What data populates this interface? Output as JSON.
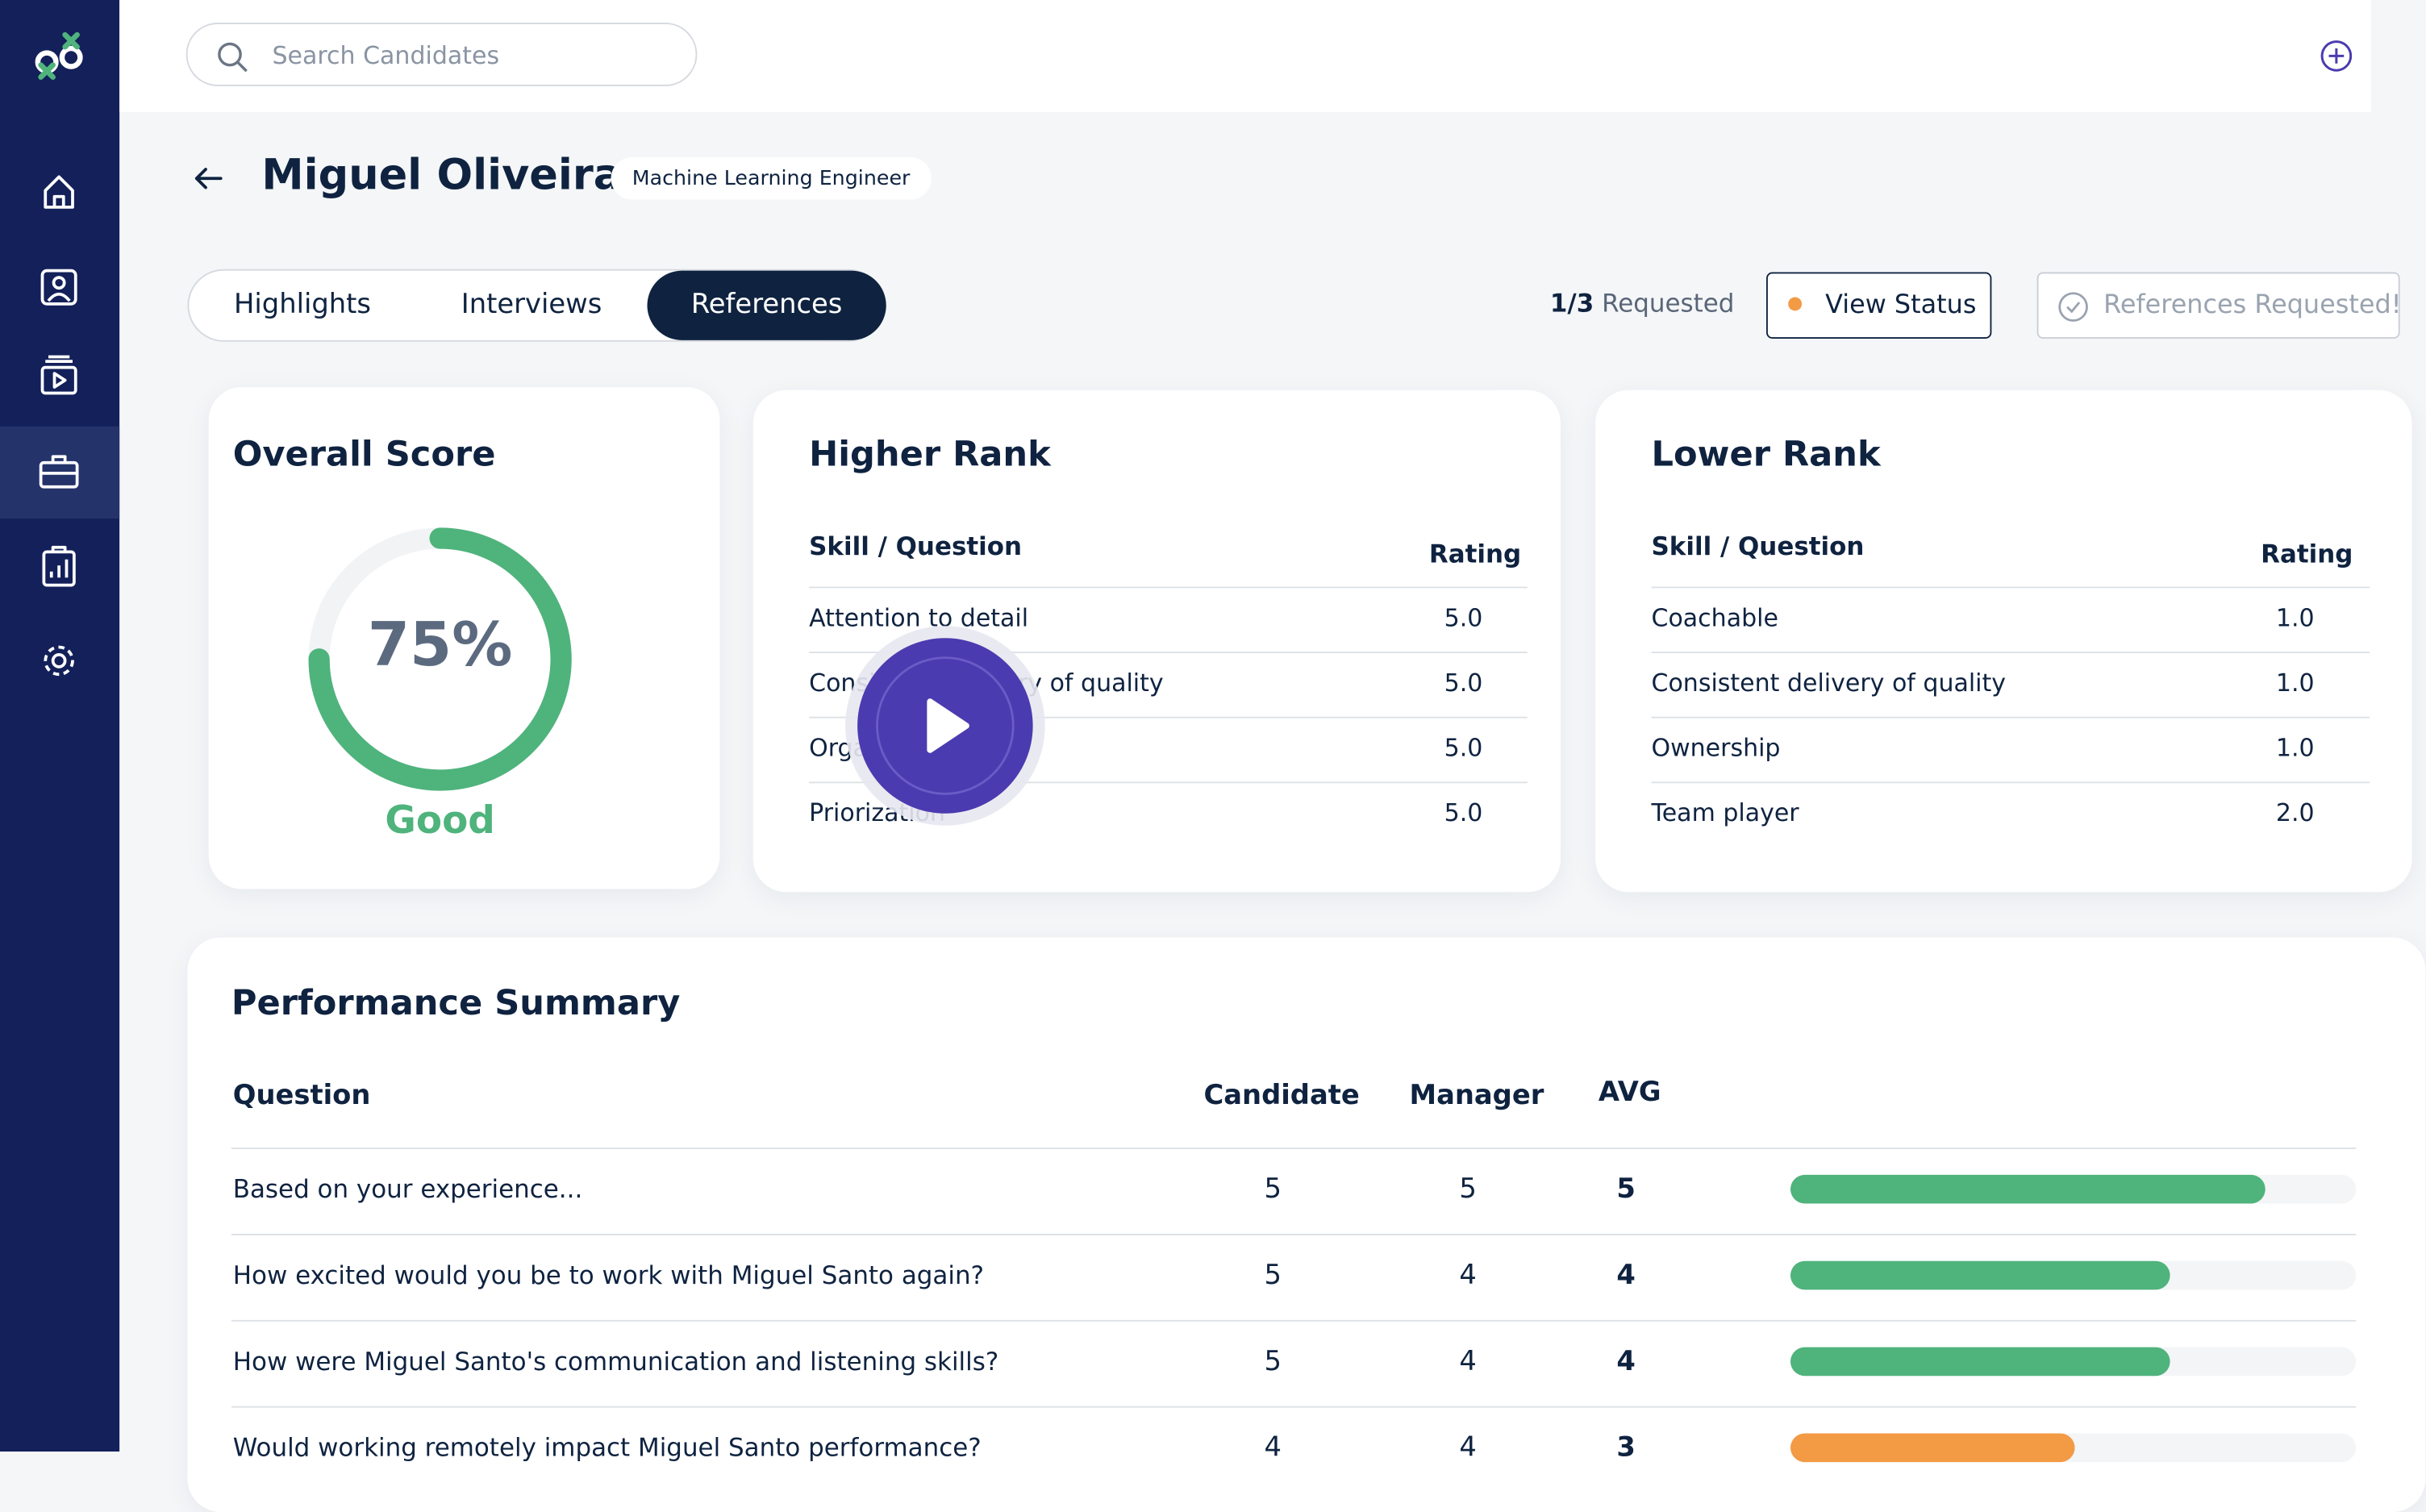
{
  "search_placeholder": "Search Candidates",
  "candidate": {
    "name": "Miguel Oliveira",
    "role": "Machine Learning Engineer"
  },
  "tabs": [
    "Highlights",
    "Interviews",
    "References"
  ],
  "active_tab": 2,
  "references": {
    "requested_count": "1/3",
    "requested_label": "Requested",
    "view_status": "View Status",
    "status_button": "References Requested!"
  },
  "overall_score": {
    "title": "Overall Score",
    "score": {
      "value": 75,
      "label": "75%"
    },
    "rating": "Good",
    "color": "#4fb37c"
  },
  "higher_rank": {
    "title": "Higher Rank",
    "columns": [
      "Skill / Question",
      "Rating"
    ],
    "rows": [
      [
        "Attention to detail",
        "5.0"
      ],
      [
        "Consistent delivery of quality",
        "5.0"
      ],
      [
        "Organization",
        "5.0"
      ],
      [
        "Priorization",
        "5.0"
      ]
    ]
  },
  "lower_rank": {
    "title": "Lower Rank",
    "columns": [
      "Skill / Question",
      "Rating"
    ],
    "rows": [
      [
        "Coachable",
        "1.0"
      ],
      [
        "Consistent delivery of quality",
        "1.0"
      ],
      [
        "Ownership",
        "1.0"
      ],
      [
        "Team player",
        "2.0"
      ]
    ]
  },
  "performance_summary": {
    "title": "Performance Summary",
    "columns": [
      "Question",
      "Candidate",
      "Manager",
      "AVG"
    ],
    "rows": [
      {
        "question": "Based on your experience...",
        "candidate": 5,
        "manager": 5,
        "avg": 5,
        "bar_color": "#4fb37c"
      },
      {
        "question": "How excited would you be to work with Miguel Santo again?",
        "candidate": 5,
        "manager": 4,
        "avg": 4,
        "bar_color": "#4fb37c"
      },
      {
        "question": "How were Miguel Santo's communication and listening skills?",
        "candidate": 5,
        "manager": 4,
        "avg": 4,
        "bar_color": "#4fb37c"
      },
      {
        "question": "Would working remotely impact Miguel Santo performance?",
        "candidate": 4,
        "manager": 4,
        "avg": 3,
        "bar_color": "#f39a45"
      }
    ]
  }
}
